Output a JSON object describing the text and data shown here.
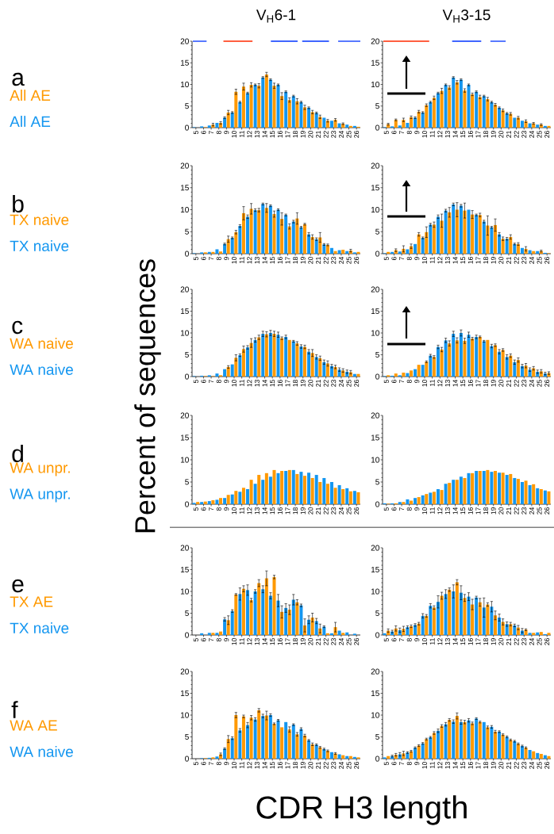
{
  "chart_data": [
    {
      "type": "bar",
      "title": "V$_{H}$6-1",
      "ylabel": "Percent of sequences",
      "annotations": [
        "a"
      ],
      "x": [
        5,
        6,
        7,
        8,
        9,
        10,
        11,
        12,
        13,
        14,
        15,
        16,
        17,
        18,
        19,
        20,
        21,
        22,
        23,
        24,
        25,
        26
      ],
      "xlim": [
        4.5,
        26.5
      ],
      "xticks": [
        5,
        6,
        7,
        8,
        9,
        10,
        11,
        12,
        13,
        14,
        15,
        16,
        17,
        18,
        19,
        20,
        21,
        22,
        23,
        24,
        25,
        26
      ],
      "ylim": [
        0,
        20
      ],
      "yticks": [
        0,
        5,
        10,
        15,
        20
      ],
      "series": [
        {
          "type": "line",
          "color": "#0033ff",
          "x": [
            4.6,
            6.4
          ],
          "values": [
            20,
            20
          ]
        },
        {
          "type": "line",
          "color": "#ff2a00",
          "x": [
            8.6,
            12.4
          ],
          "values": [
            20,
            20
          ]
        },
        {
          "type": "line",
          "color": "#0033ff",
          "x": [
            14.8,
            18.3
          ],
          "values": [
            20,
            20
          ]
        },
        {
          "type": "line",
          "color": "#0033ff",
          "x": [
            18.9,
            22.4
          ],
          "values": [
            20,
            20
          ]
        },
        {
          "type": "line",
          "color": "#0033ff",
          "x": [
            23.6,
            26.5
          ],
          "values": [
            20,
            20
          ]
        },
        {
          "name": "All AE",
          "color": "#1496f0",
          "values": [
            0.1,
            0.3,
            0.5,
            1.1,
            2.3,
            3.5,
            5.9,
            8.0,
            9.9,
            11.6,
            11.1,
            9.9,
            8.3,
            7.3,
            5.9,
            4.6,
            3.4,
            2.3,
            1.6,
            1.0,
            0.7,
            0.4
          ],
          "errors": [
            null,
            null,
            null,
            null,
            0.2,
            0.2,
            0.2,
            0.2,
            0.2,
            0.2,
            0.2,
            0.2,
            0.2,
            0.2,
            0.2,
            0.2,
            0.2,
            null,
            null,
            null,
            null,
            null
          ]
        },
        {
          "name": "All AE",
          "color": "#ff9900",
          "values": [
            0,
            0.1,
            0.7,
            1.1,
            3.5,
            8.3,
            9.5,
            9.9,
            9.7,
            12.3,
            9.7,
            7.3,
            6.4,
            6.1,
            4.7,
            3.6,
            2.5,
            1.6,
            1.8,
            0.9,
            0.4,
            0.2
          ],
          "errors": [
            null,
            null,
            0.3,
            0.3,
            0.5,
            0.6,
            0.8,
            0.5,
            0.5,
            0.5,
            0.6,
            0.8,
            0.5,
            0.6,
            0.5,
            0.4,
            0.4,
            0.3,
            0.3,
            0.2,
            null,
            null
          ]
        }
      ]
    },
    {
      "type": "bar",
      "title": "V$_{H}$3-15",
      "x": [
        5,
        6,
        7,
        8,
        9,
        10,
        11,
        12,
        13,
        14,
        15,
        16,
        17,
        18,
        19,
        20,
        21,
        22,
        23,
        24,
        25,
        26
      ],
      "xlim": [
        4.5,
        26.5
      ],
      "xticks": [
        5,
        6,
        7,
        8,
        9,
        10,
        11,
        12,
        13,
        14,
        15,
        16,
        17,
        18,
        19,
        20,
        21,
        22,
        23,
        24,
        25,
        26
      ],
      "ylim": [
        0,
        20
      ],
      "yticks": [
        0,
        5,
        10,
        15,
        20
      ],
      "series": [
        {
          "type": "line",
          "color": "#ff2a00",
          "x": [
            4.6,
            10.6
          ],
          "values": [
            20,
            20
          ]
        },
        {
          "type": "line",
          "color": "#0033ff",
          "x": [
            13.6,
            17.4
          ],
          "values": [
            20,
            20
          ]
        },
        {
          "type": "line",
          "color": "#0033ff",
          "x": [
            18.6,
            20.6
          ],
          "values": [
            20,
            20
          ]
        },
        {
          "color": "#1496f0",
          "values": [
            0.1,
            0.3,
            0.5,
            1.1,
            2.3,
            3.5,
            5.9,
            8.0,
            9.9,
            11.6,
            11.1,
            9.9,
            8.3,
            7.3,
            5.9,
            4.6,
            3.3,
            2.3,
            1.6,
            1.0,
            0.7,
            0.4
          ],
          "errors": [
            null,
            null,
            null,
            null,
            0.2,
            0.2,
            0.2,
            0.2,
            0.2,
            0.2,
            0.2,
            0.2,
            0.2,
            0.2,
            0.2,
            0.2,
            0.2,
            null,
            null,
            null,
            null,
            null
          ]
        },
        {
          "color": "#ff9900",
          "values": [
            0.8,
            1.8,
            1.8,
            2.4,
            3.7,
            5.2,
            6.9,
            8.5,
            9.3,
            10.5,
            8.6,
            7.7,
            7.1,
            6.6,
            5.3,
            4.0,
            3.2,
            2.3,
            1.5,
            1.0,
            0.7,
            0.4
          ],
          "errors": [
            0.2,
            0.2,
            0.4,
            0.3,
            0.3,
            0.3,
            0.4,
            0.6,
            0.4,
            0.4,
            0.4,
            0.3,
            0.4,
            0.4,
            0.3,
            0.3,
            0.3,
            0.3,
            0.3,
            0.2,
            0.2,
            null
          ]
        }
      ]
    },
    {
      "type": "bar",
      "annotations": [
        "b"
      ],
      "x": [
        5,
        6,
        7,
        8,
        9,
        10,
        11,
        12,
        13,
        14,
        15,
        16,
        17,
        18,
        19,
        20,
        21,
        22,
        23,
        24,
        25,
        26
      ],
      "xlim": [
        4.5,
        26.5
      ],
      "xticks": [
        5,
        6,
        7,
        8,
        9,
        10,
        11,
        12,
        13,
        14,
        15,
        16,
        17,
        18,
        19,
        20,
        21,
        22,
        23,
        24,
        25,
        26
      ],
      "ylim": [
        0,
        20
      ],
      "yticks": [
        0,
        5,
        10,
        15,
        20
      ],
      "series": [
        {
          "name": "TX naive",
          "color": "#1496f0",
          "values": [
            0.1,
            0.3,
            0.4,
            1.0,
            2.2,
            3.6,
            6.3,
            8.4,
            9.9,
            11.3,
            10.9,
            10.0,
            8.8,
            7.3,
            6.0,
            4.4,
            3.3,
            2.1,
            1.3,
            0.8,
            0.6,
            0.3
          ],
          "errors": [
            null,
            null,
            null,
            null,
            0.2,
            0.2,
            0.3,
            0.4,
            0.3,
            0.2,
            0.2,
            0.2,
            0.2,
            0.3,
            0.2,
            0.4,
            0.3,
            0.2,
            null,
            null,
            null,
            null
          ]
        },
        {
          "name": "TX naive",
          "color": "#ff9900",
          "values": [
            0,
            0.3,
            0.4,
            0.5,
            3.3,
            4.9,
            9.2,
            10.2,
            9.9,
            10.4,
            9.0,
            7.9,
            6.2,
            8.0,
            6.7,
            3.8,
            3.7,
            2.0,
            0.6,
            0.9,
            0.7,
            0.4
          ],
          "errors": [
            null,
            null,
            null,
            null,
            0.7,
            0.4,
            1.5,
            1.2,
            0.4,
            1.0,
            0.7,
            1.4,
            0.6,
            1.3,
            0.2,
            0.5,
            1.1,
            0.2,
            null,
            null,
            0.3,
            null
          ]
        }
      ]
    },
    {
      "type": "bar",
      "x": [
        5,
        6,
        7,
        8,
        9,
        10,
        11,
        12,
        13,
        14,
        15,
        16,
        17,
        18,
        19,
        20,
        21,
        22,
        23,
        24,
        25,
        26
      ],
      "xlim": [
        4.5,
        26.5
      ],
      "xticks": [
        5,
        6,
        7,
        8,
        9,
        10,
        11,
        12,
        13,
        14,
        15,
        16,
        17,
        18,
        19,
        20,
        21,
        22,
        23,
        24,
        25,
        26
      ],
      "ylim": [
        0,
        20
      ],
      "yticks": [
        0,
        5,
        10,
        15,
        20
      ],
      "series": [
        {
          "color": "#1496f0",
          "values": [
            0.1,
            0.4,
            0.5,
            1.0,
            2.2,
            3.6,
            6.6,
            8.4,
            9.8,
            11.2,
            10.9,
            10.0,
            8.8,
            7.3,
            6.0,
            4.4,
            3.4,
            2.2,
            1.3,
            0.8,
            0.6,
            0.2
          ],
          "errors": [
            null,
            null,
            null,
            null,
            null,
            0.2,
            0.3,
            0.4,
            0.3,
            0.3,
            0.3,
            null,
            0.2,
            0.3,
            0.2,
            0.4,
            0.3,
            0.2,
            null,
            null,
            null,
            null
          ]
        },
        {
          "color": "#ff9900",
          "values": [
            0.4,
            0.8,
            1.1,
            1.7,
            4.4,
            4.9,
            6.6,
            7.5,
            9.4,
            10.0,
            9.8,
            8.9,
            8.8,
            6.4,
            6.5,
            3.4,
            3.8,
            2.2,
            1.1,
            0.6,
            0.6,
            0.1
          ],
          "errors": [
            null,
            0.3,
            0.7,
            0.5,
            0.4,
            1.2,
            0.6,
            1.5,
            1.1,
            1.6,
            1.7,
            0.9,
            0.4,
            2.2,
            1.4,
            0.4,
            0.5,
            0.3,
            0.5,
            null,
            0.2,
            null
          ]
        }
      ]
    },
    {
      "type": "bar",
      "annotations": [
        "c"
      ],
      "x": [
        5,
        6,
        7,
        8,
        9,
        10,
        11,
        12,
        13,
        14,
        15,
        16,
        17,
        18,
        19,
        20,
        21,
        22,
        23,
        24,
        25,
        26
      ],
      "xlim": [
        4.5,
        26.5
      ],
      "xticks": [
        5,
        6,
        7,
        8,
        9,
        10,
        11,
        12,
        13,
        14,
        15,
        16,
        17,
        18,
        19,
        20,
        21,
        22,
        23,
        24,
        25,
        26
      ],
      "ylim": [
        0,
        20
      ],
      "yticks": [
        0,
        5,
        10,
        15,
        20
      ],
      "series": [
        {
          "name": "WA naive",
          "color": "#1496f0",
          "values": [
            0.1,
            0.2,
            0.3,
            0.7,
            1.7,
            2.8,
            4.9,
            6.7,
            8.4,
            9.8,
            10.0,
            9.6,
            9.1,
            8.1,
            6.9,
            5.7,
            4.5,
            3.3,
            2.4,
            1.6,
            1.1,
            0.6
          ],
          "errors": [
            null,
            null,
            null,
            null,
            null,
            null,
            0.3,
            0.4,
            0.5,
            0.6,
            0.6,
            0.6,
            0.4,
            0.2,
            0.4,
            0.5,
            0.5,
            0.5,
            0.4,
            0.4,
            0.4,
            null
          ]
        },
        {
          "name": "WA naive",
          "color": "#ff9900",
          "values": [
            0,
            0.1,
            0.1,
            0.3,
            2.2,
            4.3,
            6.3,
            7.7,
            9.0,
            9.7,
            9.8,
            8.8,
            8.4,
            7.6,
            6.8,
            5.4,
            4.2,
            3.0,
            2.2,
            1.4,
            1.0,
            0.6
          ],
          "errors": [
            null,
            null,
            null,
            null,
            0.3,
            0.7,
            0.7,
            1.0,
            0.5,
            0.6,
            0.6,
            0.3,
            null,
            0.4,
            0.4,
            0.8,
            0.5,
            0.6,
            0.4,
            0.4,
            0.4,
            null
          ]
        }
      ]
    },
    {
      "type": "bar",
      "x": [
        5,
        6,
        7,
        8,
        9,
        10,
        11,
        12,
        13,
        14,
        15,
        16,
        17,
        18,
        19,
        20,
        21,
        22,
        23,
        24,
        25,
        26
      ],
      "xlim": [
        4.5,
        26.5
      ],
      "xticks": [
        5,
        6,
        7,
        8,
        9,
        10,
        11,
        12,
        13,
        14,
        15,
        16,
        17,
        18,
        19,
        20,
        21,
        22,
        23,
        24,
        25,
        26
      ],
      "ylim": [
        0,
        20
      ],
      "yticks": [
        0,
        5,
        10,
        15,
        20
      ],
      "series": [
        {
          "color": "#1496f0",
          "values": [
            0.1,
            0.2,
            0.3,
            0.8,
            1.7,
            2.7,
            4.8,
            6.8,
            8.3,
            9.8,
            10.0,
            9.6,
            9.1,
            8.1,
            7.0,
            5.7,
            4.5,
            3.3,
            2.4,
            1.6,
            1.1,
            0.7
          ],
          "errors": [
            null,
            null,
            null,
            null,
            null,
            null,
            0.3,
            0.4,
            0.5,
            0.6,
            0.7,
            0.6,
            0.4,
            0.2,
            0.4,
            0.5,
            0.5,
            0.5,
            0.4,
            0.4,
            0.4,
            0.3
          ]
        },
        {
          "color": "#ff9900",
          "values": [
            0.3,
            0.7,
            0.9,
            1.4,
            2.7,
            3.4,
            4.5,
            6.2,
            7.6,
            8.3,
            8.2,
            8.7,
            9.1,
            8.4,
            7.2,
            6.1,
            4.8,
            3.8,
            2.5,
            1.9,
            1.2,
            0.8
          ],
          "errors": [
            null,
            null,
            null,
            null,
            null,
            0.2,
            0.3,
            0.5,
            0.6,
            0.6,
            0.6,
            0.3,
            0.2,
            null,
            0.3,
            0.3,
            0.4,
            0.5,
            0.5,
            0.4,
            0.4,
            0.3
          ]
        }
      ]
    },
    {
      "type": "bar",
      "annotations": [
        "d"
      ],
      "x": [
        5,
        6,
        7,
        8,
        9,
        10,
        11,
        12,
        13,
        14,
        15,
        16,
        17,
        18,
        19,
        20,
        21,
        22,
        23,
        24,
        25,
        26
      ],
      "xlim": [
        4.5,
        26.5
      ],
      "xticks": [
        5,
        6,
        7,
        8,
        9,
        10,
        11,
        12,
        13,
        14,
        15,
        16,
        17,
        18,
        19,
        20,
        21,
        22,
        23,
        24,
        25,
        26
      ],
      "ylim": [
        0,
        20
      ],
      "yticks": [
        0,
        5,
        10,
        15,
        20
      ],
      "series": [
        {
          "name": "WA unpr.",
          "color": "#1496f0",
          "values": [
            0.3,
            0.5,
            0.7,
            1.0,
            1.4,
            2.2,
            2.8,
            3.4,
            4.6,
            5.5,
            6.2,
            7.0,
            7.5,
            7.7,
            7.3,
            7.1,
            6.6,
            5.9,
            5.0,
            4.3,
            3.6,
            3.0
          ]
        },
        {
          "name": "WA unpr.",
          "color": "#ff9900",
          "values": [
            0.5,
            0.6,
            0.9,
            1.4,
            2.1,
            3.0,
            3.7,
            5.5,
            6.6,
            7.0,
            7.7,
            7.5,
            7.7,
            6.8,
            6.4,
            5.9,
            5.0,
            4.6,
            3.7,
            3.4,
            2.9,
            2.7
          ]
        }
      ]
    },
    {
      "type": "bar",
      "x": [
        5,
        6,
        7,
        8,
        9,
        10,
        11,
        12,
        13,
        14,
        15,
        16,
        17,
        18,
        19,
        20,
        21,
        22,
        23,
        24,
        25,
        26
      ],
      "xlim": [
        4.5,
        26.5
      ],
      "xticks": [
        5,
        6,
        7,
        8,
        9,
        10,
        11,
        12,
        13,
        14,
        15,
        16,
        17,
        18,
        19,
        20,
        21,
        22,
        23,
        24,
        25,
        26
      ],
      "ylim": [
        0,
        20
      ],
      "yticks": [
        0,
        5,
        10,
        15,
        20
      ],
      "series": [
        {
          "color": "#1496f0",
          "values": [
            0.2,
            0.2,
            0.5,
            1.1,
            1.4,
            2.0,
            2.6,
            3.4,
            4.6,
            5.5,
            6.2,
            7.0,
            7.5,
            7.5,
            7.3,
            7.1,
            6.6,
            5.9,
            5.0,
            4.3,
            3.6,
            3.1
          ]
        },
        {
          "color": "#ff9900",
          "values": [
            0.1,
            0.2,
            0.5,
            0.8,
            1.6,
            2.3,
            2.8,
            3.2,
            4.8,
            5.5,
            5.9,
            7.0,
            7.5,
            7.7,
            7.5,
            7.1,
            6.8,
            5.7,
            5.3,
            4.5,
            3.4,
            2.9
          ]
        }
      ]
    },
    {
      "type": "bar",
      "annotations": [
        "e"
      ],
      "x": [
        5,
        6,
        7,
        8,
        9,
        10,
        11,
        12,
        13,
        14,
        15,
        16,
        17,
        18,
        19,
        20,
        21,
        22,
        23,
        24,
        25,
        26
      ],
      "xlim": [
        4.5,
        26.5
      ],
      "xticks": [
        5,
        6,
        7,
        8,
        9,
        10,
        11,
        12,
        13,
        14,
        15,
        16,
        17,
        18,
        19,
        20,
        21,
        22,
        23,
        24,
        25,
        26
      ],
      "ylim": [
        0,
        20
      ],
      "yticks": [
        0,
        5,
        10,
        15,
        20
      ],
      "series": [
        {
          "name": "TX naive",
          "color": "#1496f0",
          "values": [
            0,
            0.4,
            0.5,
            0.5,
            3.6,
            5.5,
            9.4,
            10.3,
            10.0,
            10.5,
            9.0,
            7.9,
            6.2,
            8.1,
            6.8,
            3.5,
            3.2,
            1.9,
            0.4,
            1.0,
            0.6,
            0.3
          ],
          "errors": [
            null,
            null,
            null,
            null,
            0.4,
            0.3,
            1.4,
            1.2,
            0.4,
            0.8,
            0.7,
            1.4,
            1.0,
            1.2,
            0.3,
            0.9,
            0.6,
            0.2,
            null,
            null,
            null,
            null
          ]
        },
        {
          "name": "TX AE",
          "color": "#ff9900",
          "values": [
            0,
            0,
            0.5,
            0.8,
            3.4,
            9.3,
            10.6,
            8.0,
            11.9,
            13.0,
            13.3,
            5.3,
            5.8,
            7.5,
            2.2,
            4.0,
            1.5,
            0.4,
            1.8,
            0.5,
            0,
            0
          ],
          "errors": [
            null,
            null,
            null,
            null,
            1.0,
            0.2,
            0.7,
            0.4,
            0.8,
            1.7,
            0.4,
            1.4,
            1.1,
            0.6,
            1.5,
            1.0,
            1.0,
            null,
            1.1,
            null,
            null,
            null
          ]
        }
      ]
    },
    {
      "type": "bar",
      "x": [
        5,
        6,
        7,
        8,
        9,
        10,
        11,
        12,
        13,
        14,
        15,
        16,
        17,
        18,
        19,
        20,
        21,
        22,
        23,
        24,
        25,
        26
      ],
      "xlim": [
        4.5,
        26.5
      ],
      "xticks": [
        5,
        6,
        7,
        8,
        9,
        10,
        11,
        12,
        13,
        14,
        15,
        16,
        17,
        18,
        19,
        20,
        21,
        22,
        23,
        24,
        25,
        26
      ],
      "ylim": [
        0,
        20
      ],
      "yticks": [
        0,
        5,
        10,
        15,
        20
      ],
      "series": [
        {
          "color": "#1496f0",
          "values": [
            0.4,
            0.8,
            1.1,
            1.8,
            2.3,
            4.4,
            6.7,
            7.6,
            9.4,
            10.0,
            9.7,
            8.8,
            8.6,
            6.3,
            6.5,
            4.0,
            2.5,
            2.2,
            1.0,
            0.5,
            0.6,
            0.2
          ],
          "errors": [
            null,
            0.3,
            0.5,
            0.3,
            0.3,
            0.5,
            0.5,
            1.4,
            1.0,
            1.5,
            1.6,
            0.9,
            0.3,
            2.2,
            1.2,
            0.8,
            0.5,
            0.3,
            0.5,
            null,
            null,
            null
          ]
        },
        {
          "color": "#ff9900",
          "values": [
            1.0,
            1.5,
            1.4,
            2.0,
            2.6,
            4.4,
            6.3,
            9.0,
            10.4,
            12.1,
            8.5,
            7.0,
            7.5,
            7.0,
            4.5,
            3.0,
            2.5,
            1.7,
            1.2,
            0.5,
            0.7,
            0.5
          ],
          "errors": [
            0.4,
            0.6,
            0.6,
            0.3,
            0.3,
            0.3,
            0.4,
            0.8,
            0.4,
            0.6,
            0.8,
            1.2,
            0.9,
            0.4,
            1.0,
            0.7,
            0.4,
            0.5,
            0.2,
            null,
            null,
            null
          ]
        }
      ]
    },
    {
      "type": "bar",
      "annotations": [
        "f"
      ],
      "xlabel": "CDR H3 length",
      "x": [
        5,
        6,
        7,
        8,
        9,
        10,
        11,
        12,
        13,
        14,
        15,
        16,
        17,
        18,
        19,
        20,
        21,
        22,
        23,
        24,
        25,
        26
      ],
      "xlim": [
        4.5,
        26.5
      ],
      "xticks": [
        5,
        6,
        7,
        8,
        9,
        10,
        11,
        12,
        13,
        14,
        15,
        16,
        17,
        18,
        19,
        20,
        21,
        22,
        23,
        24,
        25,
        26
      ],
      "ylim": [
        0,
        20
      ],
      "yticks": [
        0,
        5,
        10,
        15,
        20
      ],
      "series": [
        {
          "name": "WA naive",
          "color": "#1496f0",
          "values": [
            0,
            0.1,
            0.2,
            0.5,
            2.3,
            4.7,
            6.5,
            7.7,
            9.0,
            9.8,
            10.0,
            8.8,
            8.4,
            7.8,
            6.8,
            4.2,
            3.2,
            2.2,
            1.5,
            1.0,
            0.6,
            0.4
          ],
          "errors": [
            null,
            null,
            null,
            null,
            0.2,
            0.3,
            0.4,
            0.6,
            0.4,
            0.4,
            0.3,
            0.2,
            null,
            0.2,
            0.3,
            0.2,
            0.2,
            0.2,
            null,
            null,
            null,
            null
          ]
        },
        {
          "name": "WA AE",
          "color": "#ff9900",
          "values": [
            0,
            0.1,
            0.3,
            1.0,
            4.5,
            10.0,
            9.7,
            9.4,
            11.1,
            9.9,
            8.0,
            7.2,
            6.7,
            5.6,
            5.3,
            3.3,
            2.6,
            1.8,
            1.2,
            0.8,
            0.6,
            0.3
          ],
          "errors": [
            null,
            null,
            null,
            0.3,
            0.8,
            0.6,
            0.3,
            0.5,
            0.4,
            1.0,
            0.2,
            null,
            0.6,
            0.4,
            0.3,
            0.3,
            0.2,
            0.2,
            0.2,
            null,
            null,
            null
          ]
        }
      ]
    },
    {
      "type": "bar",
      "x": [
        5,
        6,
        7,
        8,
        9,
        10,
        11,
        12,
        13,
        14,
        15,
        16,
        17,
        18,
        19,
        20,
        21,
        22,
        23,
        24,
        25,
        26
      ],
      "xlim": [
        4.5,
        26.5
      ],
      "xticks": [
        5,
        6,
        7,
        8,
        9,
        10,
        11,
        12,
        13,
        14,
        15,
        16,
        17,
        18,
        19,
        20,
        21,
        22,
        23,
        24,
        25,
        26
      ],
      "ylim": [
        0,
        20
      ],
      "yticks": [
        0,
        5,
        10,
        15,
        20
      ],
      "series": [
        {
          "color": "#1496f0",
          "values": [
            0.3,
            0.6,
            1.0,
            1.4,
            2.5,
            3.5,
            4.9,
            6.4,
            7.9,
            8.5,
            8.4,
            8.8,
            9.2,
            8.4,
            7.3,
            6.2,
            5.0,
            4.0,
            2.9,
            2.0,
            1.3,
            0.8
          ],
          "errors": [
            null,
            0.2,
            0.4,
            0.2,
            0.2,
            0.2,
            0.2,
            0.4,
            0.4,
            0.4,
            0.5,
            0.4,
            0.2,
            null,
            0.3,
            0.2,
            0.2,
            0.2,
            0.2,
            null,
            null,
            null
          ]
        },
        {
          "color": "#ff9900",
          "values": [
            0.6,
            0.9,
            1.2,
            1.7,
            3.0,
            4.5,
            5.9,
            7.5,
            8.9,
            9.8,
            8.4,
            8.1,
            8.4,
            7.2,
            6.2,
            5.5,
            4.3,
            3.4,
            2.5,
            1.7,
            1.1,
            0.6
          ],
          "errors": [
            null,
            0.3,
            0.5,
            0.2,
            0.2,
            0.2,
            0.3,
            0.3,
            0.3,
            0.7,
            0.4,
            0.3,
            0.2,
            0.3,
            0.3,
            0.2,
            0.2,
            0.2,
            0.2,
            null,
            null,
            null
          ]
        }
      ]
    }
  ]
}
